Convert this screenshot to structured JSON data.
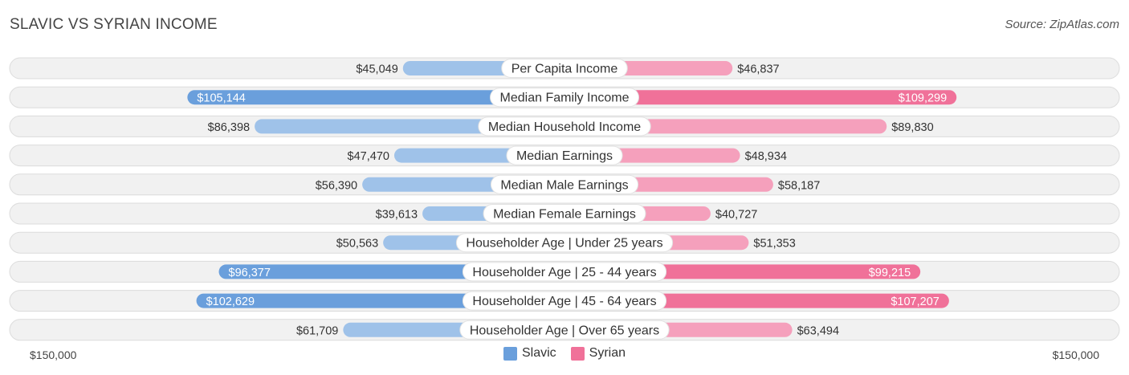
{
  "header": {
    "title": "SLAVIC VS SYRIAN INCOME",
    "source": "Source: ZipAtlas.com"
  },
  "axis": {
    "left_label": "$150,000",
    "right_label": "$150,000"
  },
  "legend": [
    {
      "name": "Slavic",
      "color": "#6a9fdc"
    },
    {
      "name": "Syrian",
      "color": "#f07199"
    }
  ],
  "colors": {
    "slavic_strong": "#6a9fdc",
    "slavic_light": "#9fc2e9",
    "syrian_strong": "#f07199",
    "syrian_light": "#f5a0bc",
    "row_bg": "#f1f1f1",
    "row_border": "#dcdcdc"
  },
  "chart_data": {
    "type": "bar",
    "orientation": "horizontal-diverging",
    "title": "SLAVIC VS SYRIAN INCOME",
    "xlim": [
      0,
      150000
    ],
    "categories": [
      "Per Capita Income",
      "Median Family Income",
      "Median Household Income",
      "Median Earnings",
      "Median Male Earnings",
      "Median Female Earnings",
      "Householder Age | Under 25 years",
      "Householder Age | 25 - 44 years",
      "Householder Age | 45 - 64 years",
      "Householder Age | Over 65 years"
    ],
    "series": [
      {
        "name": "Slavic",
        "values": [
          45049,
          105144,
          86398,
          47470,
          56390,
          39613,
          50563,
          96377,
          102629,
          61709
        ],
        "labels": [
          "$45,049",
          "$105,144",
          "$86,398",
          "$47,470",
          "$56,390",
          "$39,613",
          "$50,563",
          "$96,377",
          "$102,629",
          "$61,709"
        ]
      },
      {
        "name": "Syrian",
        "values": [
          46837,
          109299,
          89830,
          48934,
          58187,
          40727,
          51353,
          99215,
          107207,
          63494
        ],
        "labels": [
          "$46,837",
          "$109,299",
          "$89,830",
          "$48,934",
          "$58,187",
          "$40,727",
          "$51,353",
          "$99,215",
          "$107,207",
          "$63,494"
        ]
      }
    ]
  }
}
